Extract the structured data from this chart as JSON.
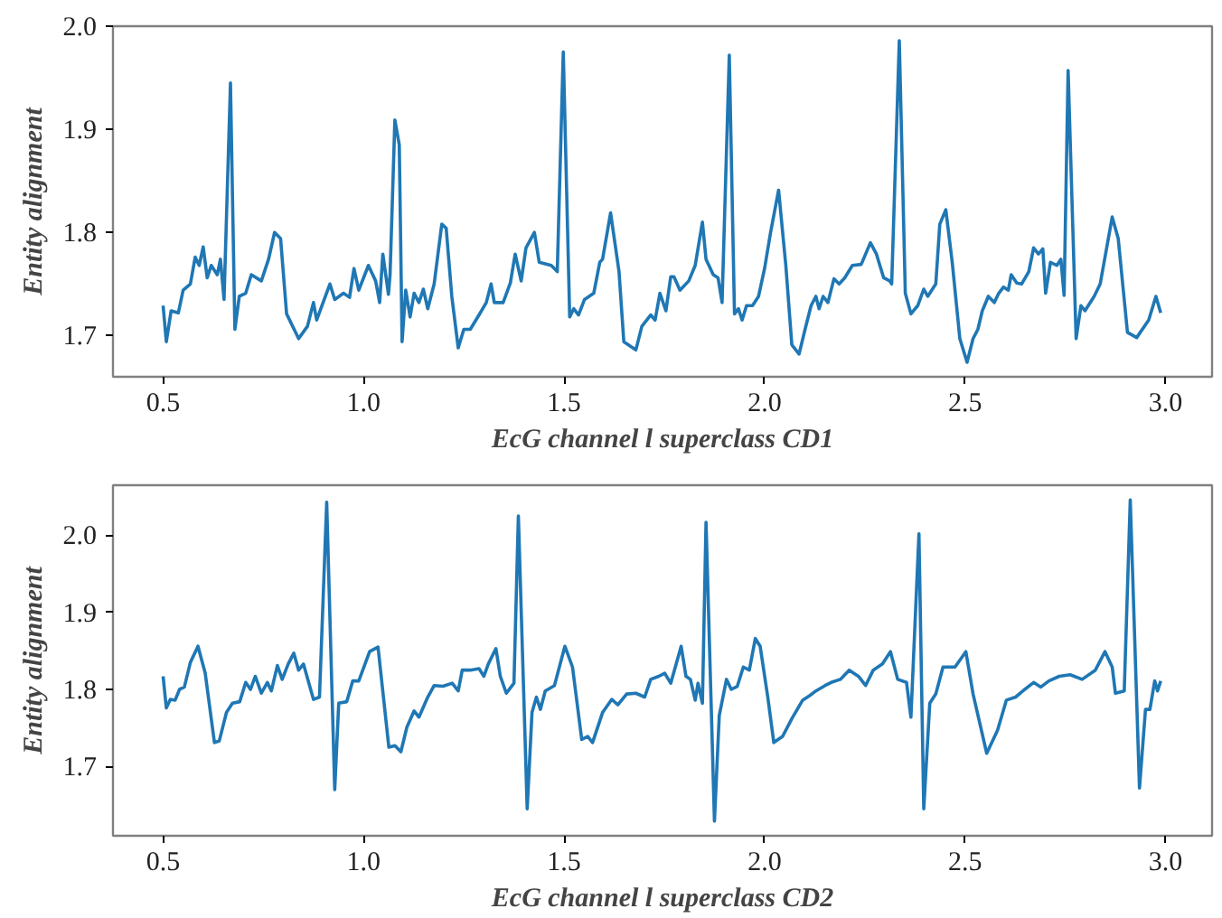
{
  "chart_data": [
    {
      "type": "line",
      "xlabel": "EcG channel l superclass CD1",
      "ylabel": "Entity alignment",
      "xlim": [
        0.375,
        3.116
      ],
      "ylim": [
        1.66,
        2.0
      ],
      "xticks": [
        0.5,
        {
          "value": 1,
          "label": "1.0"
        },
        1.5,
        {
          "value": 2,
          "label": "2.0"
        },
        2.5,
        {
          "value": 3,
          "label": "3.0"
        }
      ],
      "yticks": [
        1.7,
        1.8,
        1.9,
        {
          "value": 2,
          "label": "2.0"
        }
      ],
      "grid": false,
      "series": [
        {
          "color": "#1f77b4",
          "x": [
            0.5,
            0.508,
            0.52,
            0.538,
            0.55,
            0.568,
            0.58,
            0.59,
            0.6,
            0.61,
            0.62,
            0.635,
            0.643,
            0.652,
            0.668,
            0.679,
            0.69,
            0.706,
            0.72,
            0.745,
            0.763,
            0.778,
            0.793,
            0.808,
            0.838,
            0.86,
            0.875,
            0.883,
            0.916,
            0.928,
            0.95,
            0.965,
            0.976,
            0.988,
            1.012,
            1.03,
            1.04,
            1.048,
            1.062,
            1.066,
            1.078,
            1.089,
            1.096,
            1.105,
            1.116,
            1.126,
            1.138,
            1.149,
            1.16,
            1.176,
            1.195,
            1.206,
            1.22,
            1.236,
            1.25,
            1.266,
            1.288,
            1.306,
            1.318,
            1.326,
            1.348,
            1.366,
            1.378,
            1.393,
            1.405,
            1.426,
            1.438,
            1.468,
            1.483,
            1.498,
            1.514,
            1.524,
            1.536,
            1.551,
            1.574,
            1.589,
            1.596,
            1.616,
            1.637,
            1.649,
            1.679,
            1.694,
            1.716,
            1.727,
            1.739,
            1.754,
            1.766,
            1.774,
            1.789,
            1.811,
            1.827,
            1.845,
            1.854,
            1.872,
            1.884,
            1.894,
            1.912,
            1.925,
            1.935,
            1.944,
            1.955,
            1.97,
            1.985,
            2.0,
            2.015,
            2.035,
            2.053,
            2.068,
            2.086,
            2.101,
            2.116,
            2.128,
            2.136,
            2.146,
            2.158,
            2.173,
            2.186,
            2.2,
            2.219,
            2.241,
            2.264,
            2.279,
            2.297,
            2.312,
            2.317,
            2.336,
            2.351,
            2.365,
            2.382,
            2.397,
            2.407,
            2.427,
            2.437,
            2.452,
            2.468,
            2.487,
            2.505,
            2.52,
            2.532,
            2.543,
            2.558,
            2.573,
            2.584,
            2.596,
            2.608,
            2.615,
            2.629,
            2.641,
            2.659,
            2.671,
            2.683,
            2.694,
            2.701,
            2.713,
            2.729,
            2.739,
            2.747,
            2.757,
            2.777,
            2.789,
            2.799,
            2.822,
            2.837,
            2.867,
            2.882,
            2.905,
            2.928,
            2.958,
            2.976,
            2.988
          ],
          "values": [
            1.729,
            1.694,
            1.724,
            1.722,
            1.744,
            1.75,
            1.776,
            1.768,
            1.786,
            1.756,
            1.768,
            1.759,
            1.774,
            1.735,
            1.945,
            1.706,
            1.738,
            1.741,
            1.759,
            1.753,
            1.774,
            1.8,
            1.794,
            1.721,
            1.697,
            1.709,
            1.732,
            1.715,
            1.75,
            1.735,
            1.741,
            1.737,
            1.765,
            1.744,
            1.768,
            1.753,
            1.732,
            1.779,
            1.74,
            1.759,
            1.909,
            1.885,
            1.694,
            1.744,
            1.718,
            1.741,
            1.732,
            1.745,
            1.726,
            1.75,
            1.808,
            1.804,
            1.738,
            1.688,
            1.706,
            1.706,
            1.72,
            1.732,
            1.75,
            1.732,
            1.732,
            1.751,
            1.779,
            1.753,
            1.785,
            1.8,
            1.771,
            1.768,
            1.762,
            1.975,
            1.718,
            1.726,
            1.72,
            1.735,
            1.741,
            1.771,
            1.774,
            1.819,
            1.762,
            1.694,
            1.686,
            1.709,
            1.72,
            1.715,
            1.741,
            1.724,
            1.757,
            1.757,
            1.744,
            1.753,
            1.768,
            1.81,
            1.774,
            1.759,
            1.756,
            1.732,
            1.972,
            1.721,
            1.726,
            1.715,
            1.729,
            1.729,
            1.738,
            1.765,
            1.8,
            1.841,
            1.768,
            1.691,
            1.682,
            1.706,
            1.729,
            1.738,
            1.726,
            1.738,
            1.732,
            1.755,
            1.75,
            1.756,
            1.768,
            1.769,
            1.79,
            1.779,
            1.756,
            1.753,
            1.75,
            1.986,
            1.741,
            1.721,
            1.729,
            1.745,
            1.738,
            1.75,
            1.808,
            1.822,
            1.771,
            1.697,
            1.674,
            1.697,
            1.706,
            1.724,
            1.738,
            1.732,
            1.741,
            1.747,
            1.744,
            1.759,
            1.751,
            1.75,
            1.762,
            1.785,
            1.779,
            1.784,
            1.741,
            1.771,
            1.768,
            1.774,
            1.739,
            1.957,
            1.697,
            1.729,
            1.724,
            1.738,
            1.75,
            1.815,
            1.794,
            1.703,
            1.698,
            1.715,
            1.738,
            1.722
          ]
        }
      ]
    },
    {
      "type": "line",
      "xlabel": "EcG channel l superclass CD2",
      "ylabel": "Entity alignment",
      "xlim": [
        0.375,
        3.116
      ],
      "ylim": [
        1.61,
        2.065
      ],
      "xticks": [
        0.5,
        {
          "value": 1,
          "label": "1.0"
        },
        1.5,
        {
          "value": 2,
          "label": "2.0"
        },
        2.5,
        {
          "value": 3,
          "label": "3.0"
        }
      ],
      "yticks": [
        1.7,
        1.8,
        1.9,
        {
          "value": 2,
          "label": "2.0"
        }
      ],
      "grid": false,
      "series": [
        {
          "color": "#1f77b4",
          "x": [
            0.5,
            0.508,
            0.518,
            0.53,
            0.541,
            0.553,
            0.568,
            0.587,
            0.605,
            0.628,
            0.64,
            0.658,
            0.673,
            0.691,
            0.706,
            0.718,
            0.73,
            0.745,
            0.76,
            0.77,
            0.785,
            0.797,
            0.812,
            0.826,
            0.838,
            0.85,
            0.875,
            0.89,
            0.908,
            0.928,
            0.938,
            0.958,
            0.973,
            0.988,
            1.015,
            1.036,
            1.063,
            1.078,
            1.093,
            1.108,
            1.126,
            1.138,
            1.16,
            1.176,
            1.198,
            1.221,
            1.236,
            1.246,
            1.266,
            1.288,
            1.3,
            1.311,
            1.33,
            1.341,
            1.356,
            1.375,
            1.386,
            1.408,
            1.42,
            1.431,
            1.441,
            1.453,
            1.476,
            1.502,
            1.521,
            1.544,
            1.559,
            1.571,
            1.596,
            1.619,
            1.634,
            1.656,
            1.679,
            1.701,
            1.716,
            1.736,
            1.751,
            1.766,
            1.792,
            1.804,
            1.815,
            1.827,
            1.834,
            1.845,
            1.854,
            1.875,
            1.887,
            1.905,
            1.917,
            1.932,
            1.947,
            1.962,
            1.977,
            1.989,
            2.008,
            2.023,
            2.045,
            2.068,
            2.095,
            2.113,
            2.128,
            2.151,
            2.166,
            2.189,
            2.211,
            2.234,
            2.252,
            2.271,
            2.294,
            2.314,
            2.332,
            2.354,
            2.365,
            2.385,
            2.397,
            2.412,
            2.427,
            2.445,
            2.475,
            2.502,
            2.52,
            2.554,
            2.581,
            2.603,
            2.626,
            2.649,
            2.671,
            2.689,
            2.709,
            2.735,
            2.762,
            2.792,
            2.825,
            2.849,
            2.867,
            2.875,
            2.897,
            2.912,
            2.935,
            2.95,
            2.961,
            2.973,
            2.98,
            2.988
          ],
          "values": [
            1.817,
            1.776,
            1.787,
            1.786,
            1.8,
            1.803,
            1.835,
            1.856,
            1.821,
            1.731,
            1.733,
            1.77,
            1.782,
            1.784,
            1.809,
            1.8,
            1.817,
            1.795,
            1.809,
            1.798,
            1.831,
            1.813,
            1.833,
            1.847,
            1.825,
            1.833,
            1.787,
            1.79,
            2.043,
            1.67,
            1.782,
            1.784,
            1.811,
            1.811,
            1.849,
            1.855,
            1.725,
            1.727,
            1.719,
            1.751,
            1.772,
            1.764,
            1.79,
            1.805,
            1.804,
            1.808,
            1.798,
            1.825,
            1.825,
            1.827,
            1.817,
            1.833,
            1.853,
            1.817,
            1.795,
            1.808,
            2.025,
            1.645,
            1.77,
            1.79,
            1.774,
            1.798,
            1.805,
            1.856,
            1.829,
            1.735,
            1.739,
            1.731,
            1.77,
            1.787,
            1.78,
            1.794,
            1.795,
            1.79,
            1.813,
            1.817,
            1.821,
            1.808,
            1.856,
            1.817,
            1.813,
            1.786,
            1.808,
            1.782,
            2.017,
            1.629,
            1.766,
            1.813,
            1.8,
            1.804,
            1.829,
            1.825,
            1.866,
            1.856,
            1.79,
            1.731,
            1.739,
            1.762,
            1.786,
            1.792,
            1.798,
            1.805,
            1.809,
            1.813,
            1.825,
            1.817,
            1.805,
            1.825,
            1.833,
            1.849,
            1.813,
            1.809,
            1.764,
            2.002,
            1.645,
            1.782,
            1.794,
            1.829,
            1.829,
            1.849,
            1.794,
            1.717,
            1.747,
            1.786,
            1.79,
            1.8,
            1.809,
            1.803,
            1.811,
            1.817,
            1.819,
            1.813,
            1.825,
            1.849,
            1.829,
            1.795,
            1.798,
            2.046,
            1.672,
            1.774,
            1.774,
            1.811,
            1.798,
            1.811
          ]
        }
      ]
    }
  ]
}
